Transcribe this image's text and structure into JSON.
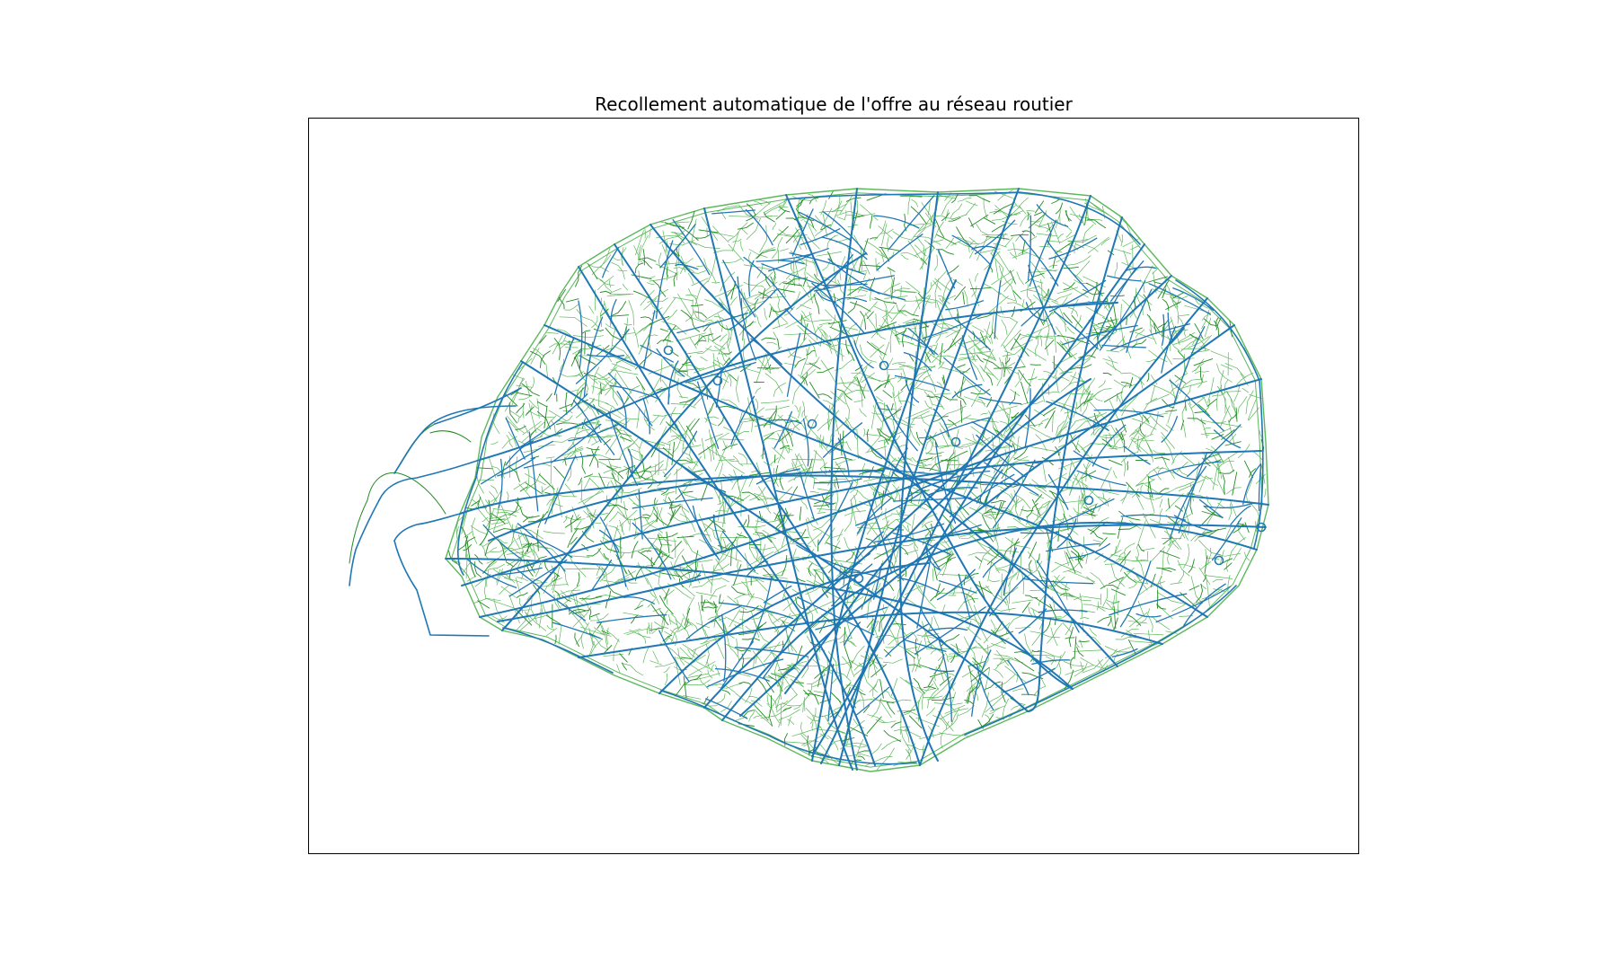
{
  "figure": {
    "title": "Recollement automatique de l'offre au réseau routier"
  },
  "map": {
    "layers": [
      {
        "id": "road-network-light",
        "color": "#5cb85c",
        "role": "background road network"
      },
      {
        "id": "road-network-dark",
        "color": "#228b22",
        "role": "secondary road network"
      },
      {
        "id": "matched-offer",
        "color": "#1f77b4",
        "role": "matched transit offer"
      }
    ],
    "frame_color": "#000000",
    "background_color": "#ffffff"
  }
}
